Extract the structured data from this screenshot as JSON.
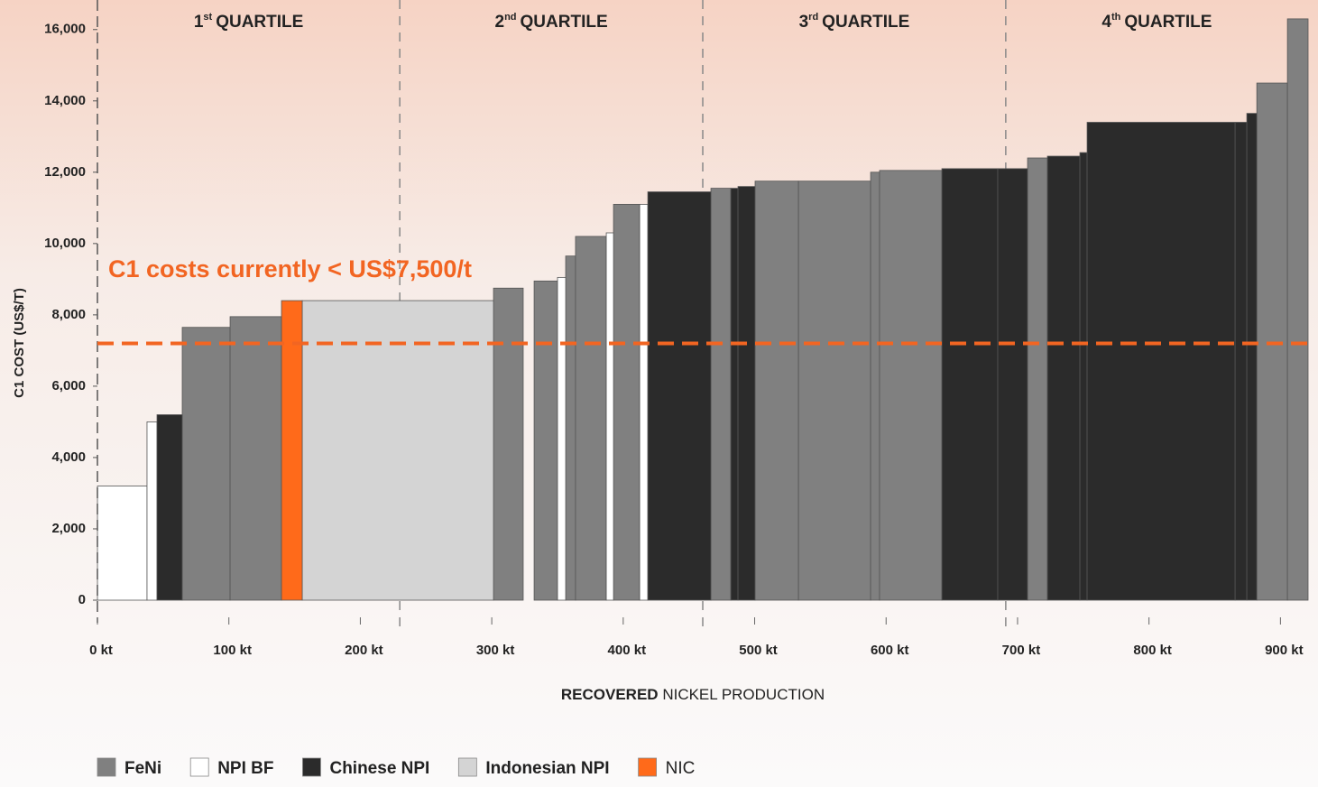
{
  "chart_data": {
    "type": "cost-curve",
    "y_label": "C1 COST (US$/T)",
    "x_label_bold": "RECOVERED",
    "x_label": "NICKEL PRODUCTION",
    "annotation": "C1 costs currently < US$7,500/t",
    "threshold": 7200,
    "threshold_color": "#f26522",
    "xlim": [
      0,
      932
    ],
    "ylim": [
      0,
      16500
    ],
    "xticks": [
      {
        "value": 0,
        "label": "0 kt"
      },
      {
        "value": 100,
        "label": "100 kt"
      },
      {
        "value": 200,
        "label": "200 kt"
      },
      {
        "value": 300,
        "label": "300 kt"
      },
      {
        "value": 400,
        "label": "400 kt"
      },
      {
        "value": 500,
        "label": "500 kt"
      },
      {
        "value": 600,
        "label": "600 kt"
      },
      {
        "value": 700,
        "label": "700 kt"
      },
      {
        "value": 800,
        "label": "800 kt"
      },
      {
        "value": 900,
        "label": "900 kt"
      }
    ],
    "yticks": [
      0,
      {
        "value": 2000,
        "label": "2,000"
      },
      {
        "value": 4000,
        "label": "4,000"
      },
      {
        "value": 6000,
        "label": "6,000"
      },
      {
        "value": 8000,
        "label": "8,000"
      },
      {
        "value": 10000,
        "label": "10,000"
      },
      {
        "value": 12000,
        "label": "12,000"
      },
      {
        "value": 14000,
        "label": "14,000"
      },
      {
        "value": 16000,
        "label": "16,000"
      }
    ],
    "quartile_dividers": [
      11,
      241,
      471.5,
      702,
      932
    ],
    "quartiles": [
      {
        "number": "1",
        "suffix": "st",
        "text": "QUARTILE"
      },
      {
        "number": "2",
        "suffix": "nd",
        "text": "QUARTILE"
      },
      {
        "number": "3",
        "suffix": "rd",
        "text": "QUARTILE"
      },
      {
        "number": "4",
        "suffix": "th",
        "text": "QUARTILE"
      }
    ],
    "series": [
      {
        "name": "FeNi",
        "color": "#808080",
        "x_start": [
          75.5,
          111.9,
          312.3,
          343.2,
          367.2,
          374.7,
          403.6,
          477.7,
          511.3,
          544.3,
          599.2,
          606.0,
          718.6,
          893.0,
          916.3
        ],
        "x_end": [
          111.9,
          151.0,
          334.9,
          361.0,
          374.7,
          398.1,
          423.5,
          492.8,
          544.3,
          599.2,
          606.0,
          653.4,
          733.7,
          916.3,
          932
        ],
        "values": [
          7650,
          7950,
          8750,
          8950,
          9650,
          10200,
          11100,
          11550,
          11750,
          11750,
          12000,
          12050,
          12400,
          14500,
          16300
        ]
      },
      {
        "name": "NPI BF",
        "color": "#ffffff",
        "x_start": [
          11.0,
          48.7,
          361.0,
          398.1,
          423.5
        ],
        "x_end": [
          48.7,
          56.3,
          367.2,
          403.6,
          429.7
        ],
        "values": [
          3200,
          5000,
          9050,
          10300,
          11100
        ]
      },
      {
        "name": "Chinese NPI",
        "color": "#2b2b2b",
        "x_start": [
          56.3,
          429.7,
          492.8,
          498.3,
          653.4,
          695.9,
          733.7,
          758.4,
          763.9,
          876.5,
          885.4
        ],
        "x_end": [
          75.5,
          477.7,
          498.3,
          511.3,
          695.9,
          718.6,
          758.4,
          763.9,
          876.5,
          885.4,
          893.0
        ],
        "values": [
          5200,
          11450,
          11550,
          11600,
          12100,
          12100,
          12450,
          12550,
          13400,
          13400,
          13650
        ]
      },
      {
        "name": "Indonesian NPI",
        "color": "#d4d4d4",
        "x_start": [
          166.8
        ],
        "x_end": [
          312.3
        ],
        "values": [
          8400
        ]
      },
      {
        "name": "NIC",
        "color": "#ff6a1a",
        "x_start": [
          151.0
        ],
        "x_end": [
          166.8
        ],
        "values": [
          8400
        ]
      }
    ]
  }
}
